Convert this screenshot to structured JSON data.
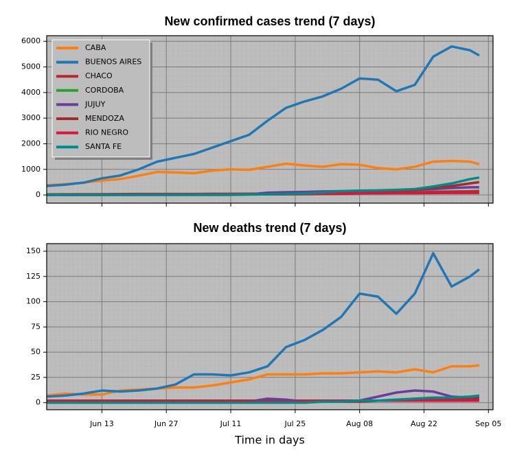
{
  "chart_data": [
    {
      "type": "line",
      "title": "New confirmed cases trend (7 days)",
      "x": [
        "Jun 01",
        "Jun 05",
        "Jun 09",
        "Jun 13",
        "Jun 17",
        "Jun 21",
        "Jun 25",
        "Jun 29",
        "Jul 03",
        "Jul 07",
        "Jul 11",
        "Jul 15",
        "Jul 19",
        "Jul 23",
        "Jul 27",
        "Jul 31",
        "Aug 04",
        "Aug 08",
        "Aug 12",
        "Aug 16",
        "Aug 20",
        "Aug 24",
        "Aug 28",
        "Sep 01",
        "Sep 03"
      ],
      "xlim": [
        "Jun 01",
        "Sep 06"
      ],
      "ylim": [
        -320,
        6220
      ],
      "yticks": [
        0,
        1000,
        2000,
        3000,
        4000,
        5000,
        6000
      ],
      "grid": true,
      "legend": "upper left",
      "series": [
        {
          "name": "CABA",
          "color": "#ff7f0e",
          "values": [
            380,
            420,
            480,
            560,
            620,
            750,
            900,
            880,
            850,
            950,
            1000,
            980,
            1100,
            1220,
            1150,
            1100,
            1200,
            1180,
            1050,
            1000,
            1100,
            1300,
            1330,
            1300,
            1200
          ]
        },
        {
          "name": "BUENOS AIRES",
          "color": "#1f77b4",
          "values": [
            350,
            400,
            480,
            650,
            760,
            1000,
            1300,
            1450,
            1600,
            1850,
            2100,
            2350,
            2900,
            3400,
            3650,
            3850,
            4150,
            4550,
            4500,
            4050,
            4300,
            5400,
            5800,
            5650,
            5450
          ]
        },
        {
          "name": "CHACO",
          "color": "#b8282c",
          "values": [
            20,
            25,
            30,
            30,
            35,
            40,
            40,
            40,
            40,
            45,
            45,
            50,
            50,
            55,
            55,
            60,
            60,
            65,
            65,
            70,
            70,
            75,
            80,
            80,
            80
          ]
        },
        {
          "name": "CORDOBA",
          "color": "#2ca02c",
          "values": [
            5,
            5,
            5,
            5,
            10,
            10,
            10,
            15,
            15,
            20,
            25,
            30,
            40,
            50,
            60,
            70,
            80,
            90,
            100,
            110,
            120,
            130,
            140,
            150,
            160
          ]
        },
        {
          "name": "JUJUY",
          "color": "#6a3d9a",
          "values": [
            0,
            0,
            0,
            0,
            0,
            0,
            0,
            0,
            0,
            0,
            0,
            20,
            90,
            110,
            120,
            140,
            150,
            160,
            170,
            180,
            200,
            230,
            270,
            300,
            300
          ]
        },
        {
          "name": "MENDOZA",
          "color": "#a52a2a",
          "values": [
            5,
            5,
            5,
            5,
            5,
            5,
            5,
            10,
            10,
            10,
            15,
            20,
            20,
            25,
            30,
            35,
            40,
            60,
            90,
            130,
            200,
            280,
            350,
            450,
            500
          ]
        },
        {
          "name": "RIO NEGRO",
          "color": "#dc143c",
          "values": [
            5,
            5,
            5,
            10,
            10,
            10,
            10,
            15,
            15,
            15,
            20,
            20,
            25,
            30,
            40,
            50,
            60,
            70,
            80,
            90,
            100,
            110,
            120,
            130,
            140
          ]
        },
        {
          "name": "SANTA FE",
          "color": "#008b8b",
          "values": [
            0,
            0,
            0,
            0,
            0,
            0,
            0,
            0,
            5,
            5,
            10,
            15,
            25,
            40,
            60,
            100,
            150,
            170,
            180,
            200,
            230,
            330,
            450,
            620,
            680
          ]
        }
      ]
    },
    {
      "type": "line",
      "title": "New deaths trend (7 days)",
      "xlabel": "Time in days",
      "x": [
        "Jun 01",
        "Jun 05",
        "Jun 09",
        "Jun 13",
        "Jun 17",
        "Jun 21",
        "Jun 25",
        "Jun 29",
        "Jul 03",
        "Jul 07",
        "Jul 11",
        "Jul 15",
        "Jul 19",
        "Jul 23",
        "Jul 27",
        "Jul 31",
        "Aug 04",
        "Aug 08",
        "Aug 12",
        "Aug 16",
        "Aug 20",
        "Aug 24",
        "Aug 28",
        "Sep 01",
        "Sep 03"
      ],
      "xlim": [
        "Jun 01",
        "Sep 06"
      ],
      "xticks": [
        "Jun 13",
        "Jun 27",
        "Jul 11",
        "Jul 25",
        "Aug 08",
        "Aug 22",
        "Sep 05"
      ],
      "ylim": [
        -7,
        157.5
      ],
      "yticks": [
        0,
        25,
        50,
        75,
        100,
        125,
        150
      ],
      "grid": true,
      "series": [
        {
          "name": "CABA",
          "color": "#ff7f0e",
          "values": [
            7,
            9,
            8,
            8,
            12,
            13,
            14,
            15,
            15,
            17,
            20,
            23,
            28,
            28,
            28,
            29,
            29,
            30,
            31,
            30,
            33,
            30,
            36,
            36,
            37
          ]
        },
        {
          "name": "BUENOS AIRES",
          "color": "#1f77b4",
          "values": [
            6,
            7,
            9,
            12,
            11,
            12,
            14,
            18,
            28,
            28,
            27,
            30,
            36,
            55,
            62,
            72,
            85,
            108,
            105,
            88,
            108,
            148,
            115,
            125,
            132
          ]
        },
        {
          "name": "CHACO",
          "color": "#b8282c",
          "values": [
            2,
            2,
            2,
            2,
            2,
            2,
            2,
            2,
            2,
            2,
            2,
            2,
            2,
            2,
            2,
            2,
            2,
            2,
            2,
            2,
            3,
            3,
            3,
            3,
            3
          ]
        },
        {
          "name": "CORDOBA",
          "color": "#2ca02c",
          "values": [
            0,
            0,
            0,
            0,
            0,
            0,
            0,
            0,
            0,
            0,
            0,
            0,
            0,
            0,
            0,
            1,
            1,
            1,
            2,
            2,
            3,
            3,
            4,
            5,
            6
          ]
        },
        {
          "name": "JUJUY",
          "color": "#6a3d9a",
          "values": [
            0,
            0,
            0,
            0,
            0,
            0,
            0,
            0,
            0,
            0,
            0,
            1,
            4,
            3,
            1,
            1,
            2,
            2,
            6,
            10,
            12,
            11,
            6,
            5,
            5
          ]
        },
        {
          "name": "MENDOZA",
          "color": "#a52a2a",
          "values": [
            0,
            0,
            0,
            0,
            0,
            0,
            0,
            0,
            0,
            0,
            0,
            0,
            1,
            1,
            1,
            1,
            1,
            1,
            2,
            2,
            2,
            3,
            3,
            3,
            4
          ]
        },
        {
          "name": "RIO NEGRO",
          "color": "#dc143c",
          "values": [
            1,
            1,
            1,
            1,
            1,
            1,
            1,
            1,
            1,
            1,
            1,
            1,
            1,
            1,
            1,
            2,
            2,
            2,
            2,
            2,
            2,
            2,
            2,
            2,
            2
          ]
        },
        {
          "name": "SANTA FE",
          "color": "#008b8b",
          "values": [
            0,
            0,
            0,
            0,
            0,
            0,
            0,
            0,
            0,
            0,
            0,
            0,
            0,
            0,
            0,
            1,
            1,
            2,
            2,
            3,
            4,
            5,
            5,
            6,
            7
          ]
        }
      ]
    }
  ]
}
